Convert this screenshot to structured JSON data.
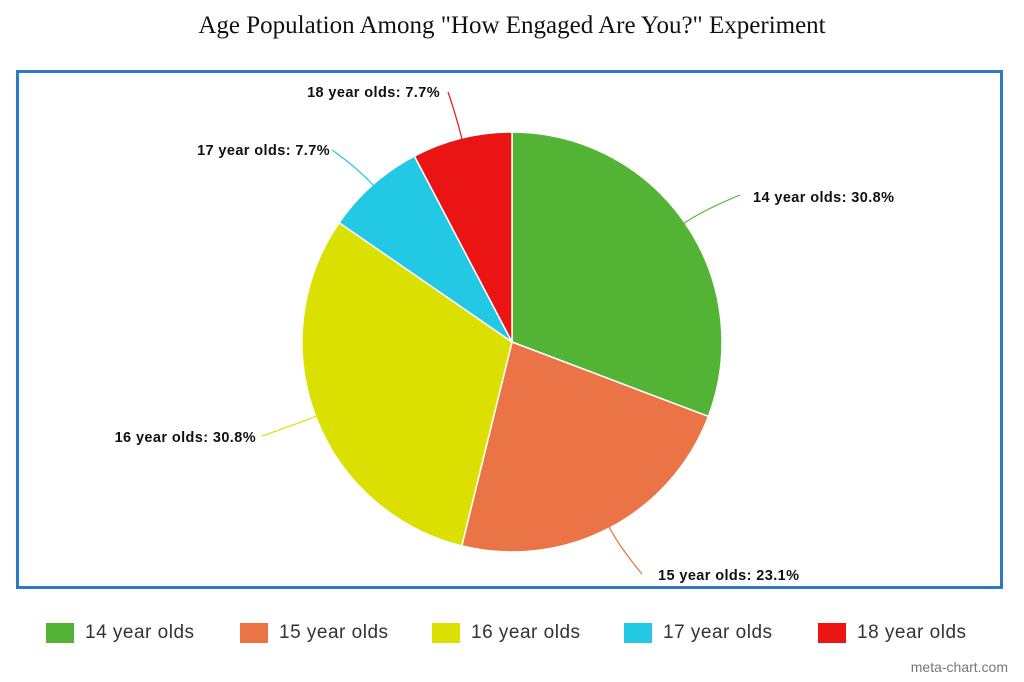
{
  "chart_data": {
    "type": "pie",
    "title": "Age Population Among \"How Engaged Are You?\" Experiment",
    "categories": [
      "14 year olds",
      "15 year olds",
      "16 year olds",
      "17 year olds",
      "18 year olds"
    ],
    "values": [
      30.8,
      23.1,
      30.8,
      7.7,
      7.7
    ],
    "unit": "%",
    "data_labels": [
      "14 year olds: 30.8%",
      "15 year olds: 23.1%",
      "16 year olds: 30.8%",
      "17 year olds: 7.7%",
      "18 year olds: 7.7%"
    ],
    "colors": [
      "#52b335",
      "#ea7445",
      "#dce000",
      "#22c8e4",
      "#ea1414"
    ],
    "legend_position": "bottom"
  },
  "watermark": "meta-chart.com"
}
